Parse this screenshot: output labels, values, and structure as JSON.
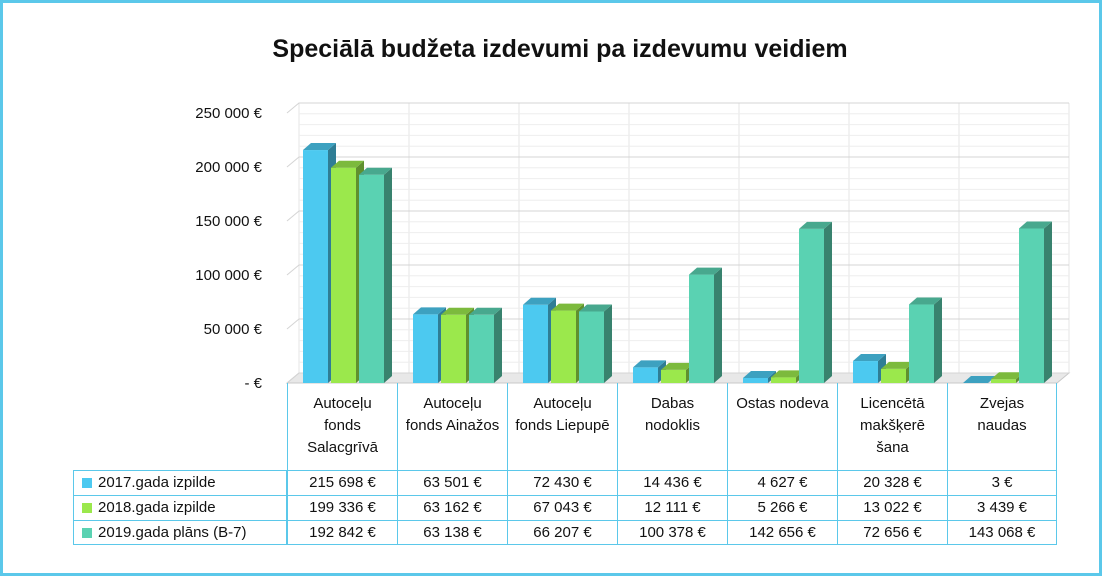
{
  "chart_data": {
    "type": "bar3d",
    "title": "Speciālā budžeta izdevumi pa izdevumu veidiem",
    "categories": [
      "Autoceļu fonds Salacgrīvā",
      "Autoceļu fonds Ainažos",
      "Autoceļu fonds Liepupē",
      "Dabas nodoklis",
      "Ostas nodeva",
      "Licencētā makšķerē šana",
      "Zvejas naudas"
    ],
    "series": [
      {
        "name": "2017.gada izpilde",
        "color": "#4cc9f0",
        "values": [
          215698,
          63501,
          72430,
          14436,
          4627,
          20328,
          3
        ],
        "value_labels": [
          "215 698 €",
          "63 501 €",
          "72 430 €",
          "14 436 €",
          "4 627 €",
          "20 328 €",
          "3 €"
        ]
      },
      {
        "name": "2018.gada izpilde",
        "color": "#9be84c",
        "values": [
          199336,
          63162,
          67043,
          12111,
          5266,
          13022,
          3439
        ],
        "value_labels": [
          "199 336 €",
          "63 162 €",
          "67 043 €",
          "12 111 €",
          "5 266 €",
          "13 022 €",
          "3 439 €"
        ]
      },
      {
        "name": "2019.gada plāns (B-7)",
        "color": "#5ad2b2",
        "values": [
          192842,
          63138,
          66207,
          100378,
          142656,
          72656,
          143068
        ],
        "value_labels": [
          "192 842 €",
          "63 138 €",
          "66 207 €",
          "100 378 €",
          "142 656 €",
          "72 656 €",
          "143 068 €"
        ]
      }
    ],
    "ylim": [
      0,
      250000
    ],
    "yticks": [
      {
        "value": 0,
        "label": "-  €"
      },
      {
        "value": 50000,
        "label": "50 000 €"
      },
      {
        "value": 100000,
        "label": "100 000 €"
      },
      {
        "value": 150000,
        "label": "150 000 €"
      },
      {
        "value": 200000,
        "label": "200 000 €"
      },
      {
        "value": 250000,
        "label": "250 000 €"
      }
    ],
    "grid": true,
    "legend": "table"
  }
}
